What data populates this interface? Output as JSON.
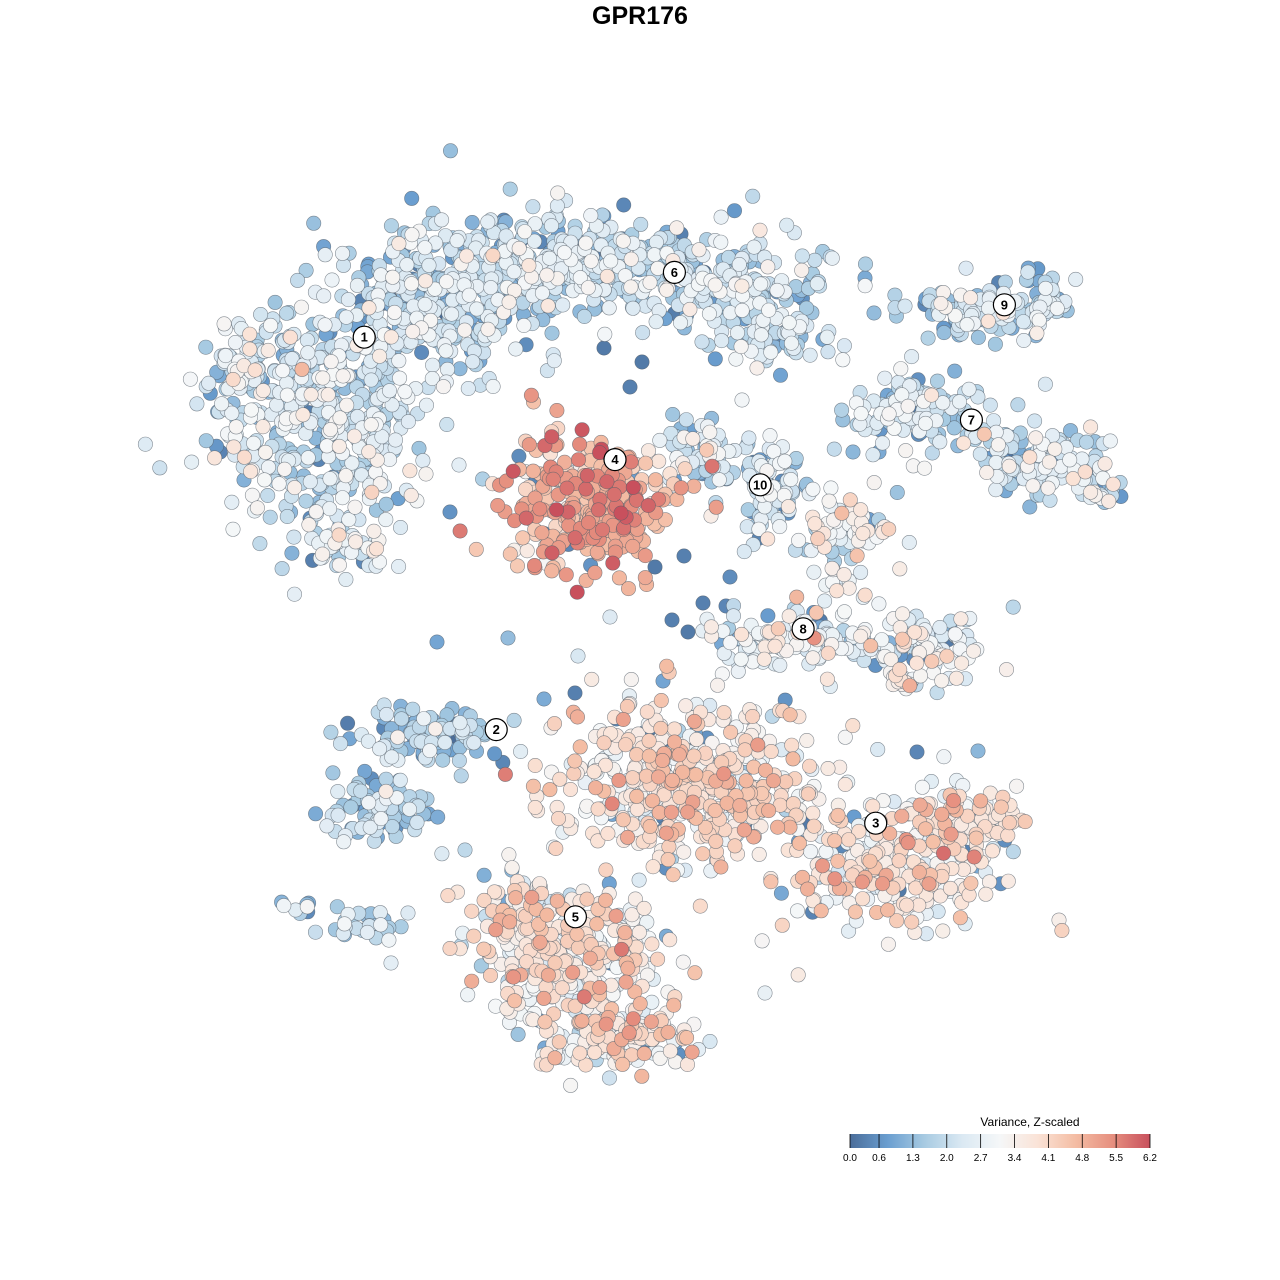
{
  "title": "GPR176",
  "chart_data": {
    "type": "scatter",
    "title": "GPR176",
    "subtitle": "",
    "xlabel": "",
    "ylabel": "",
    "axes_visible": false,
    "grid": false,
    "color_scale": {
      "title": "Variance, Z-scaled",
      "min": 0.0,
      "max": 6.2,
      "ticks": [
        "0.0",
        "0.6",
        "1.3",
        "2.0",
        "2.7",
        "3.4",
        "4.1",
        "4.8",
        "5.5",
        "6.2"
      ],
      "colors": [
        "#4a6d9a",
        "#6a9ed0",
        "#a8cbe2",
        "#dbe9f3",
        "#f5f7f8",
        "#fae3d7",
        "#f4bda4",
        "#e68f7f",
        "#c8505d"
      ],
      "placement": "bottom-right"
    },
    "clusters": [
      {
        "label": "1",
        "x": -7.6,
        "y": 7.3,
        "mean_value": 2.3
      },
      {
        "label": "2",
        "x": -3.6,
        "y": -3.6,
        "mean_value": 1.7
      },
      {
        "label": "3",
        "x": 7.9,
        "y": -6.2,
        "mean_value": 3.6
      },
      {
        "label": "4",
        "x": 0.0,
        "y": 3.9,
        "mean_value": 4.6
      },
      {
        "label": "5",
        "x": -1.2,
        "y": -8.8,
        "mean_value": 3.5
      },
      {
        "label": "6",
        "x": 1.8,
        "y": 9.1,
        "mean_value": 2.0
      },
      {
        "label": "7",
        "x": 10.8,
        "y": 5.0,
        "mean_value": 2.2
      },
      {
        "label": "8",
        "x": 5.7,
        "y": -0.8,
        "mean_value": 2.9
      },
      {
        "label": "9",
        "x": 11.8,
        "y": 8.2,
        "mean_value": 2.0
      },
      {
        "label": "10",
        "x": 4.4,
        "y": 3.2,
        "mean_value": 2.1
      }
    ]
  }
}
